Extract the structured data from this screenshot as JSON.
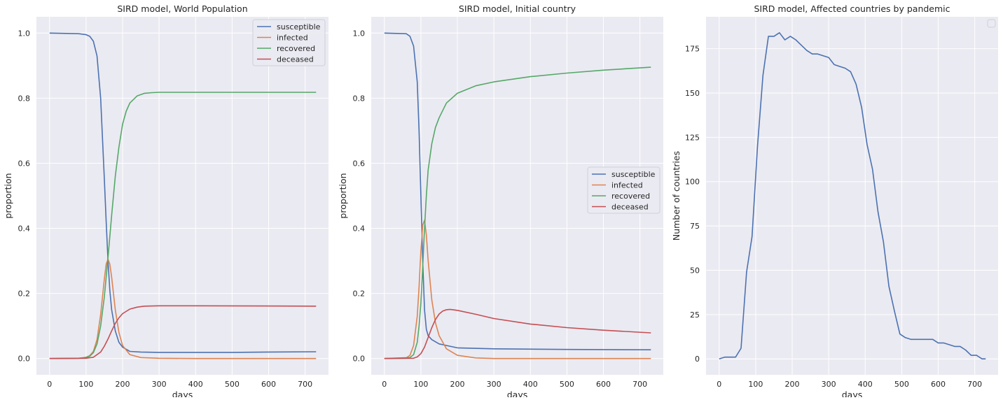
{
  "chart_data": [
    {
      "type": "line",
      "title": "SIRD model, World Population",
      "xlabel": "days",
      "ylabel": "proportion",
      "xlim": [
        -36,
        764
      ],
      "ylim": [
        -0.05,
        1.05
      ],
      "xticks": [
        0,
        100,
        200,
        300,
        400,
        500,
        600,
        700
      ],
      "yticks": [
        0.0,
        0.2,
        0.4,
        0.6,
        0.8,
        1.0
      ],
      "ytick_labels": [
        "0.0",
        "0.2",
        "0.4",
        "0.6",
        "0.8",
        "1.0"
      ],
      "grid": true,
      "legend": "top-right",
      "series": [
        {
          "name": "susceptible",
          "color": "#4c72b0",
          "x": [
            0,
            80,
            100,
            110,
            120,
            130,
            140,
            150,
            155,
            160,
            165,
            170,
            180,
            190,
            200,
            220,
            250,
            300,
            400,
            500,
            600,
            730
          ],
          "y": [
            1.0,
            0.998,
            0.995,
            0.99,
            0.975,
            0.93,
            0.8,
            0.55,
            0.42,
            0.3,
            0.21,
            0.15,
            0.085,
            0.05,
            0.035,
            0.022,
            0.02,
            0.019,
            0.019,
            0.019,
            0.02,
            0.021
          ]
        },
        {
          "name": "infected",
          "color": "#dd8452",
          "x": [
            0,
            80,
            100,
            110,
            120,
            130,
            140,
            150,
            155,
            160,
            165,
            170,
            180,
            190,
            200,
            220,
            250,
            300,
            400,
            730
          ],
          "y": [
            0.0,
            0.001,
            0.004,
            0.009,
            0.022,
            0.058,
            0.135,
            0.245,
            0.29,
            0.305,
            0.29,
            0.25,
            0.15,
            0.08,
            0.04,
            0.012,
            0.003,
            0.001,
            0.0,
            0.0
          ]
        },
        {
          "name": "recovered",
          "color": "#55a868",
          "x": [
            0,
            80,
            100,
            110,
            120,
            130,
            140,
            150,
            160,
            170,
            180,
            190,
            200,
            210,
            220,
            240,
            260,
            280,
            300,
            400,
            730
          ],
          "y": [
            0.0,
            0.001,
            0.003,
            0.007,
            0.018,
            0.045,
            0.1,
            0.19,
            0.31,
            0.44,
            0.56,
            0.65,
            0.72,
            0.76,
            0.785,
            0.807,
            0.815,
            0.817,
            0.818,
            0.818,
            0.818
          ]
        },
        {
          "name": "deceased",
          "color": "#c44e52",
          "x": [
            0,
            100,
            120,
            140,
            150,
            160,
            170,
            180,
            190,
            200,
            220,
            240,
            260,
            300,
            400,
            730
          ],
          "y": [
            0.0,
            0.001,
            0.004,
            0.02,
            0.038,
            0.06,
            0.085,
            0.108,
            0.125,
            0.138,
            0.152,
            0.158,
            0.161,
            0.162,
            0.162,
            0.161
          ]
        }
      ]
    },
    {
      "type": "line",
      "title": "SIRD model, Initial country",
      "xlabel": "days",
      "ylabel": "proportion",
      "xlim": [
        -36,
        764
      ],
      "ylim": [
        -0.05,
        1.05
      ],
      "xticks": [
        0,
        100,
        200,
        300,
        400,
        500,
        600,
        700
      ],
      "yticks": [
        0.0,
        0.2,
        0.4,
        0.6,
        0.8,
        1.0
      ],
      "ytick_labels": [
        "0.0",
        "0.2",
        "0.4",
        "0.6",
        "0.8",
        "1.0"
      ],
      "grid": true,
      "legend": "center-right",
      "series": [
        {
          "name": "susceptible",
          "color": "#4c72b0",
          "x": [
            0,
            60,
            70,
            80,
            90,
            95,
            100,
            105,
            110,
            115,
            120,
            130,
            150,
            200,
            300,
            500,
            730
          ],
          "y": [
            1.0,
            0.998,
            0.99,
            0.96,
            0.85,
            0.7,
            0.5,
            0.3,
            0.15,
            0.09,
            0.07,
            0.058,
            0.045,
            0.033,
            0.03,
            0.028,
            0.027
          ]
        },
        {
          "name": "infected",
          "color": "#dd8452",
          "x": [
            0,
            60,
            70,
            80,
            90,
            95,
            100,
            105,
            110,
            115,
            120,
            130,
            140,
            150,
            170,
            200,
            250,
            300,
            730
          ],
          "y": [
            0.0,
            0.002,
            0.01,
            0.04,
            0.13,
            0.22,
            0.33,
            0.41,
            0.425,
            0.38,
            0.3,
            0.18,
            0.11,
            0.07,
            0.03,
            0.01,
            0.002,
            0.0,
            0.0
          ]
        },
        {
          "name": "recovered",
          "color": "#55a868",
          "x": [
            0,
            70,
            80,
            90,
            95,
            100,
            105,
            110,
            115,
            120,
            130,
            140,
            150,
            170,
            200,
            250,
            300,
            400,
            500,
            600,
            730
          ],
          "y": [
            0.0,
            0.003,
            0.012,
            0.05,
            0.1,
            0.17,
            0.28,
            0.4,
            0.5,
            0.58,
            0.66,
            0.71,
            0.74,
            0.785,
            0.815,
            0.838,
            0.85,
            0.866,
            0.877,
            0.886,
            0.895
          ]
        },
        {
          "name": "deceased",
          "color": "#c44e52",
          "x": [
            0,
            80,
            90,
            100,
            110,
            120,
            130,
            140,
            150,
            160,
            170,
            180,
            200,
            250,
            300,
            400,
            500,
            600,
            730
          ],
          "y": [
            0.0,
            0.001,
            0.005,
            0.015,
            0.035,
            0.065,
            0.095,
            0.12,
            0.137,
            0.146,
            0.15,
            0.151,
            0.148,
            0.136,
            0.123,
            0.106,
            0.095,
            0.087,
            0.079
          ]
        }
      ]
    },
    {
      "type": "line",
      "title": "SIRD model, Affected countries by pandemic",
      "xlabel": "days",
      "ylabel": "Number of countries",
      "xlim": [
        -36,
        764
      ],
      "ylim": [
        -9,
        193
      ],
      "xticks": [
        0,
        100,
        200,
        300,
        400,
        500,
        600,
        700
      ],
      "yticks": [
        0,
        25,
        50,
        75,
        100,
        125,
        150,
        175
      ],
      "ytick_labels": [
        "0",
        "25",
        "50",
        "75",
        "100",
        "125",
        "150",
        "175"
      ],
      "grid": true,
      "legend": "top-right",
      "legend_empty": true,
      "series": [
        {
          "color": "#4c72b0",
          "x": [
            0,
            15,
            30,
            45,
            60,
            75,
            90,
            105,
            120,
            135,
            150,
            165,
            180,
            195,
            210,
            225,
            240,
            255,
            270,
            285,
            300,
            315,
            330,
            345,
            360,
            375,
            390,
            405,
            420,
            435,
            450,
            465,
            480,
            495,
            510,
            525,
            540,
            555,
            570,
            585,
            600,
            615,
            630,
            645,
            660,
            675,
            690,
            705,
            720,
            730
          ],
          "y": [
            0,
            1,
            1,
            1,
            6,
            49,
            69,
            120,
            160,
            182,
            182,
            184,
            180,
            182,
            180,
            177,
            174,
            172,
            172,
            171,
            170,
            166,
            165,
            164,
            162,
            155,
            142,
            121,
            107,
            83,
            66,
            41,
            27,
            14,
            12,
            11,
            11,
            11,
            11,
            11,
            9,
            9,
            8,
            7,
            7,
            5,
            2,
            2,
            0,
            0
          ]
        }
      ]
    }
  ]
}
